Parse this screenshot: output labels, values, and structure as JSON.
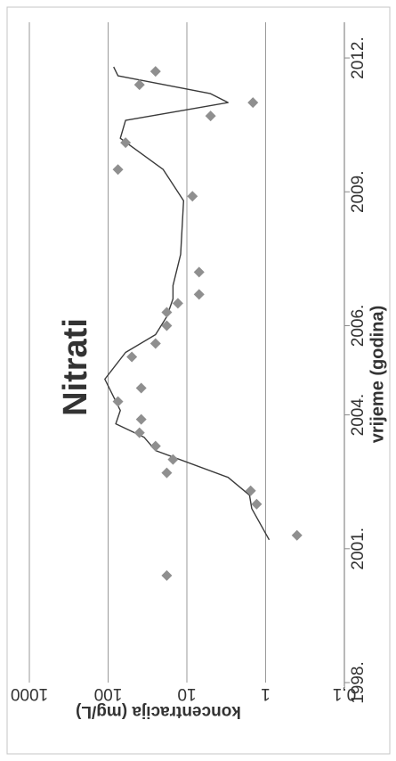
{
  "chart_data": {
    "type": "scatter",
    "title": "Nitrati",
    "xlabel": "vrijeme (godina)",
    "ylabel": "koncentracija (mg/L)",
    "y_scale": "log",
    "xlim": [
      1998,
      2012.8
    ],
    "ylim": [
      0.1,
      1000
    ],
    "x_ticks": [
      {
        "value": 1998,
        "label": "1998."
      },
      {
        "value": 2001,
        "label": "2001."
      },
      {
        "value": 2004,
        "label": "2004."
      },
      {
        "value": 2006,
        "label": "2006."
      },
      {
        "value": 2009,
        "label": "2009."
      },
      {
        "value": 2012,
        "label": "2012."
      }
    ],
    "y_ticks": [
      {
        "value": 1000,
        "label": "1000"
      },
      {
        "value": 100,
        "label": "100"
      },
      {
        "value": 10,
        "label": "10"
      },
      {
        "value": 1,
        "label": "1"
      },
      {
        "value": 0.1,
        "label": "0,1"
      }
    ],
    "grid": "horizontal",
    "colors": {
      "points": "#8f8f8f",
      "line": "#3a3a3a",
      "grid": "#9a9a9a"
    },
    "series": [
      {
        "kind": "points",
        "x": [
          2000.4,
          2001.3,
          2002.0,
          2002.3,
          2002.7,
          2003.0,
          2003.3,
          2003.6,
          2003.9,
          2004.3,
          2004.6,
          2005.3,
          2005.6,
          2006.0,
          2006.3,
          2006.5,
          2006.7,
          2007.2,
          2008.9,
          2009.5,
          2010.1,
          2010.7,
          2011.0,
          2011.4,
          2011.7
        ],
        "y": [
          18,
          0.4,
          1.3,
          1.55,
          18,
          15,
          25,
          40,
          38,
          75,
          38,
          50,
          25,
          18,
          18,
          13,
          7,
          7,
          8.5,
          75,
          60,
          5,
          1.45,
          40,
          25
        ]
      },
      {
        "kind": "line",
        "x": [
          2001.2,
          2001.9,
          2002.2,
          2002.6,
          2003.2,
          2003.5,
          2003.8,
          2004.1,
          2004.8,
          2005.4,
          2005.8,
          2006.2,
          2006.6,
          2006.9,
          2007.6,
          2008.8,
          2009.5,
          2010.2,
          2010.6,
          2011.0,
          2011.2,
          2011.6,
          2011.8
        ],
        "y": [
          0.9,
          1.5,
          1.6,
          3,
          25,
          35,
          80,
          70,
          110,
          60,
          25,
          18,
          15,
          15,
          12,
          11,
          20,
          70,
          60,
          3,
          5,
          75,
          85
        ]
      }
    ]
  }
}
